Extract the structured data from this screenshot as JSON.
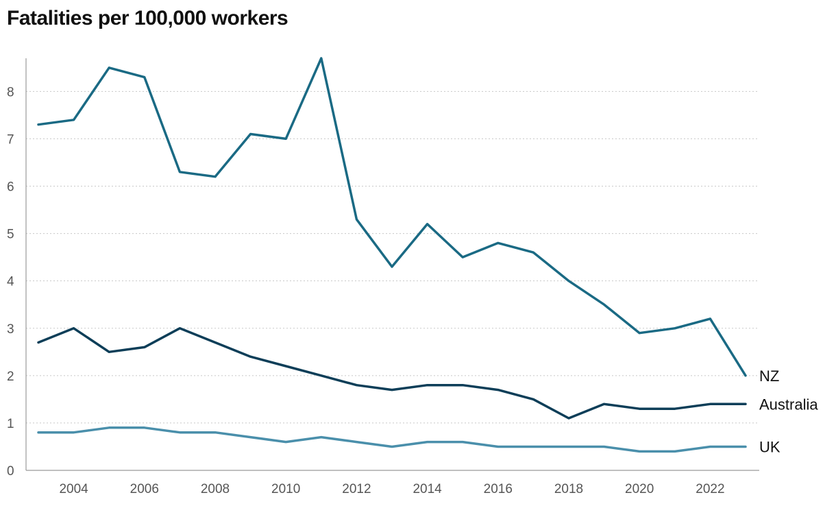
{
  "chart_data": {
    "type": "line",
    "title": "Fatalities per 100,000 workers",
    "xlabel": "",
    "ylabel": "",
    "x": [
      2003,
      2004,
      2005,
      2006,
      2007,
      2008,
      2009,
      2010,
      2011,
      2012,
      2013,
      2014,
      2015,
      2016,
      2017,
      2018,
      2019,
      2020,
      2021,
      2022,
      2023
    ],
    "x_ticks": [
      "2004",
      "2006",
      "2008",
      "2010",
      "2012",
      "2014",
      "2016",
      "2018",
      "2020",
      "2022"
    ],
    "y_ticks": [
      "0",
      "1",
      "2",
      "3",
      "4",
      "5",
      "6",
      "7",
      "8"
    ],
    "ylim": [
      0,
      8.7
    ],
    "grid": "horizontal dotted",
    "legend": "direct labels at line ends (right)",
    "series": [
      {
        "name": "NZ",
        "color": "#1a6a84",
        "values": [
          7.3,
          7.4,
          8.5,
          8.3,
          6.3,
          6.2,
          7.1,
          7.0,
          8.7,
          5.3,
          4.3,
          5.2,
          4.5,
          4.8,
          4.6,
          4.0,
          3.5,
          2.9,
          3.0,
          3.2,
          2.0
        ]
      },
      {
        "name": "Australia",
        "color": "#0d3e58",
        "values": [
          2.7,
          3.0,
          2.5,
          2.6,
          3.0,
          2.7,
          2.4,
          2.2,
          2.0,
          1.8,
          1.7,
          1.8,
          1.8,
          1.7,
          1.5,
          1.1,
          1.4,
          1.3,
          1.3,
          1.4,
          1.4
        ]
      },
      {
        "name": "UK",
        "color": "#4a8fab",
        "values": [
          0.8,
          0.8,
          0.9,
          0.9,
          0.8,
          0.8,
          0.7,
          0.6,
          0.7,
          0.6,
          0.5,
          0.6,
          0.6,
          0.5,
          0.5,
          0.5,
          0.5,
          0.4,
          0.4,
          0.5,
          0.5
        ]
      }
    ]
  }
}
